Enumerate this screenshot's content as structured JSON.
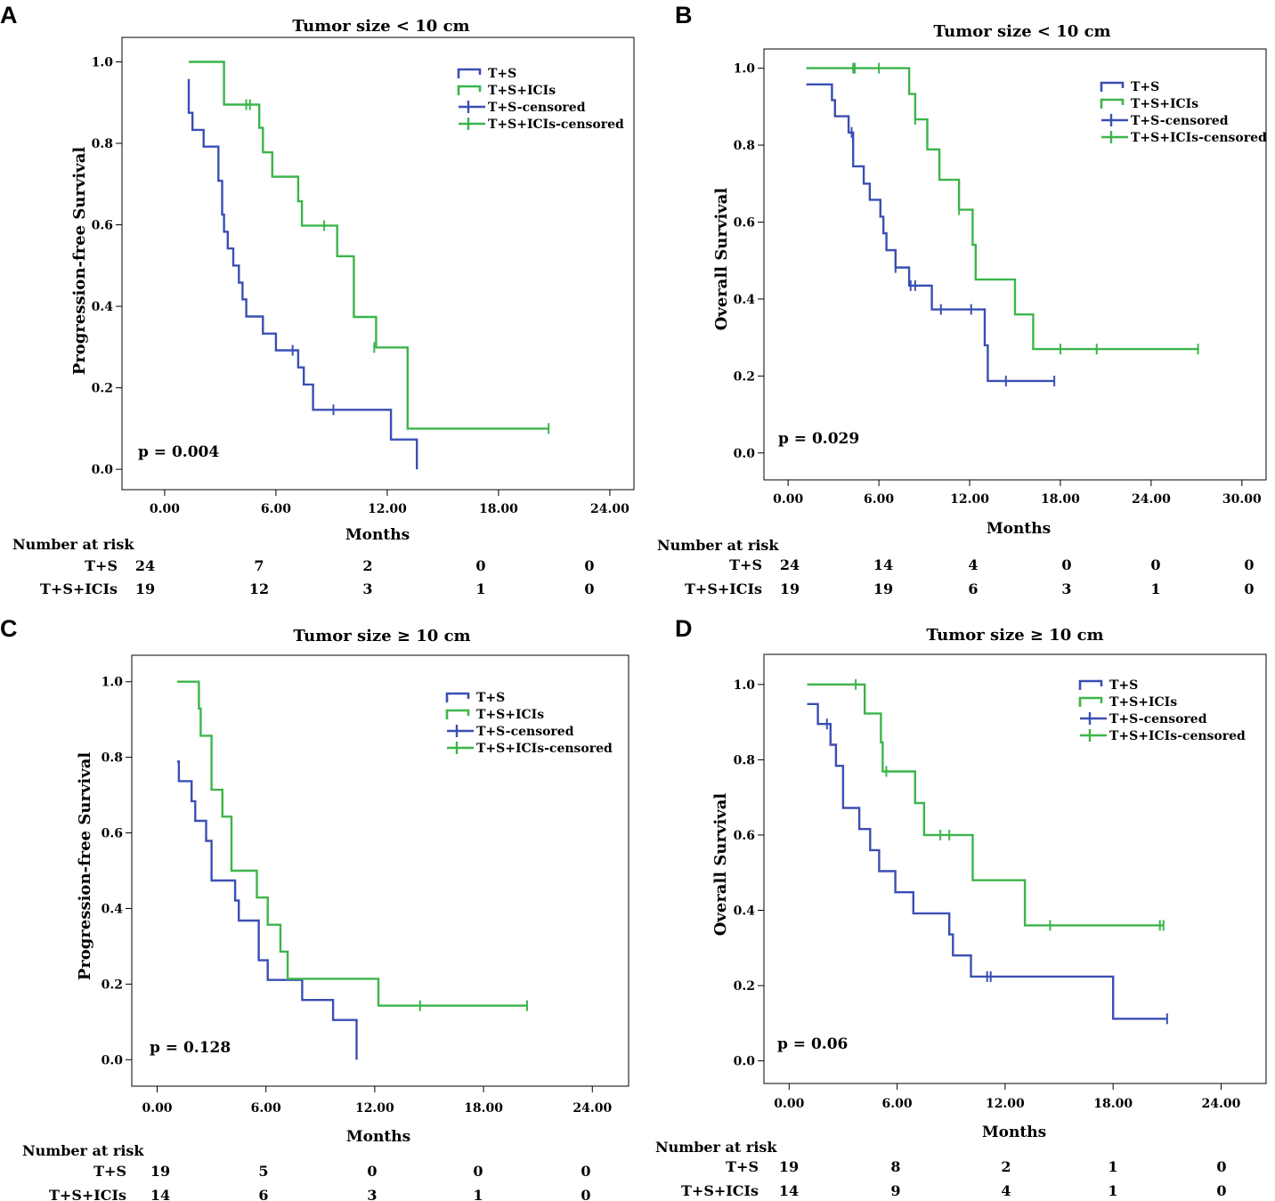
{
  "colors": {
    "ts": "#3a4fb4",
    "tsici": "#3cb54a",
    "axis": "#000000"
  },
  "chart_data": [
    {
      "type": "line",
      "panel_letter": "A",
      "title": "Tumor size < 10 cm",
      "ylabel": "Progression-free Survival",
      "xlabel": "Months",
      "xlim": [
        -2.3,
        25.3
      ],
      "ylim": [
        -0.05,
        1.06
      ],
      "xticks": [
        0,
        6,
        12,
        18,
        24
      ],
      "xtick_labels": [
        "0.00",
        "6.00",
        "12.00",
        "18.00",
        "24.00"
      ],
      "yticks": [
        0,
        0.2,
        0.4,
        0.6,
        0.8,
        1.0
      ],
      "ytick_labels": [
        "0.0",
        "0.2",
        "0.4",
        "0.6",
        "0.8",
        "1.0"
      ],
      "p_value": "p = 0.004",
      "legend": [
        "T+S",
        "T+S+ICIs",
        "T+S-censored",
        "T+S+ICIs-censored"
      ],
      "series": [
        {
          "name": "T+S",
          "color": "ts",
          "steps": [
            [
              1.3,
              0.958
            ],
            [
              1.3,
              0.875
            ],
            [
              1.5,
              0.833
            ],
            [
              2.1,
              0.792
            ],
            [
              2.9,
              0.708
            ],
            [
              3.1,
              0.625
            ],
            [
              3.2,
              0.583
            ],
            [
              3.4,
              0.542
            ],
            [
              3.7,
              0.5
            ],
            [
              4.0,
              0.458
            ],
            [
              4.2,
              0.417
            ],
            [
              4.4,
              0.375
            ],
            [
              5.3,
              0.333
            ],
            [
              6.0,
              0.292
            ],
            [
              7.2,
              0.25
            ],
            [
              7.5,
              0.208
            ],
            [
              8.0,
              0.146
            ],
            [
              12.2,
              0.073
            ],
            [
              13.6,
              0.0
            ]
          ],
          "start": 1.3,
          "start_y": 0.958,
          "censored": [
            [
              6.9,
              0.292
            ],
            [
              9.1,
              0.146
            ]
          ]
        },
        {
          "name": "T+S+ICIs",
          "color": "tsici",
          "steps": [
            [
              3.2,
              0.895
            ],
            [
              5.1,
              0.838
            ],
            [
              5.3,
              0.778
            ],
            [
              5.8,
              0.718
            ],
            [
              7.2,
              0.658
            ],
            [
              7.4,
              0.598
            ],
            [
              9.3,
              0.523
            ],
            [
              10.2,
              0.374
            ],
            [
              11.4,
              0.299
            ],
            [
              13.1,
              0.1
            ]
          ],
          "start": 1.3,
          "start_y": 1.0,
          "end": 20.7,
          "censored": [
            [
              4.4,
              0.895
            ],
            [
              4.6,
              0.895
            ],
            [
              8.6,
              0.598
            ],
            [
              11.3,
              0.299
            ],
            [
              20.7,
              0.1
            ]
          ]
        }
      ],
      "risk": {
        "heading": "Number at risk",
        "rows": [
          {
            "label": "T+S",
            "values": [
              "24",
              "7",
              "2",
              "0",
              "0"
            ]
          },
          {
            "label": "T+S+ICIs",
            "values": [
              "19",
              "12",
              "3",
              "1",
              "0"
            ]
          }
        ]
      }
    },
    {
      "type": "line",
      "panel_letter": "B",
      "title": "Tumor size < 10 cm",
      "ylabel": "Overall Survival",
      "xlabel": "Months",
      "xlim": [
        -1.6,
        31.6
      ],
      "ylim": [
        -0.07,
        1.05
      ],
      "xticks": [
        0,
        6,
        12,
        18,
        24,
        30
      ],
      "xtick_labels": [
        "0.00",
        "6.00",
        "12.00",
        "18.00",
        "24.00",
        "30.00"
      ],
      "yticks": [
        0,
        0.2,
        0.4,
        0.6,
        0.8,
        1.0
      ],
      "ytick_labels": [
        "0.0",
        "0.2",
        "0.4",
        "0.6",
        "0.8",
        "1.0"
      ],
      "p_value": "p = 0.029",
      "legend": [
        "T+S",
        "T+S+ICIs",
        "T+S-censored",
        "T+S+ICIs-censored"
      ],
      "series": [
        {
          "name": "T+S",
          "color": "ts",
          "steps": [
            [
              2.9,
              0.917
            ],
            [
              3.1,
              0.875
            ],
            [
              4.0,
              0.833
            ],
            [
              4.3,
              0.745
            ],
            [
              5.0,
              0.7
            ],
            [
              5.4,
              0.658
            ],
            [
              6.1,
              0.614
            ],
            [
              6.3,
              0.571
            ],
            [
              6.5,
              0.527
            ],
            [
              7.1,
              0.482
            ],
            [
              8.0,
              0.435
            ],
            [
              9.5,
              0.373
            ],
            [
              13.0,
              0.28
            ],
            [
              13.2,
              0.187
            ]
          ],
          "start": 1.2,
          "start_y": 0.958,
          "end": 17.6,
          "censored": [
            [
              4.2,
              0.833
            ],
            [
              7.1,
              0.482
            ],
            [
              8.1,
              0.435
            ],
            [
              8.4,
              0.435
            ],
            [
              10.1,
              0.373
            ],
            [
              12.1,
              0.373
            ],
            [
              14.4,
              0.187
            ],
            [
              17.6,
              0.187
            ]
          ]
        },
        {
          "name": "T+S+ICIs",
          "color": "tsici",
          "steps": [
            [
              8.0,
              0.933
            ],
            [
              8.4,
              0.867
            ],
            [
              9.2,
              0.789
            ],
            [
              10.0,
              0.71
            ],
            [
              11.3,
              0.632
            ],
            [
              12.2,
              0.541
            ],
            [
              12.4,
              0.451
            ],
            [
              15.0,
              0.36
            ],
            [
              16.2,
              0.27
            ]
          ],
          "start": 1.2,
          "start_y": 1.0,
          "end": 27.1,
          "censored": [
            [
              4.3,
              1.0
            ],
            [
              4.4,
              1.0
            ],
            [
              6.0,
              1.0
            ],
            [
              8.4,
              0.867
            ],
            [
              11.3,
              0.632
            ],
            [
              18.0,
              0.27
            ],
            [
              20.4,
              0.27
            ],
            [
              27.1,
              0.27
            ]
          ]
        }
      ],
      "risk": {
        "heading": "Number at risk",
        "rows": [
          {
            "label": "T+S",
            "values": [
              "24",
              "14",
              "4",
              "0",
              "0",
              "0"
            ]
          },
          {
            "label": "T+S+ICIs",
            "values": [
              "19",
              "19",
              "6",
              "3",
              "1",
              "0"
            ]
          }
        ]
      }
    },
    {
      "type": "line",
      "panel_letter": "C",
      "title": "Tumor size  ≥ 10 cm",
      "ylabel": "Progression-free Survival",
      "xlabel": "Months",
      "xlim": [
        -1.4,
        26.0
      ],
      "ylim": [
        -0.07,
        1.07
      ],
      "xticks": [
        0,
        6,
        12,
        18,
        24
      ],
      "xtick_labels": [
        "0.00",
        "6.00",
        "12.00",
        "18.00",
        "24.00"
      ],
      "yticks": [
        0,
        0.2,
        0.4,
        0.6,
        0.8,
        1.0
      ],
      "ytick_labels": [
        "0.0",
        "0.2",
        "0.4",
        "0.6",
        "0.8",
        "1.0"
      ],
      "p_value": "p = 0.128",
      "legend": [
        "T+S",
        "T+S+ICIs",
        "T+S-censored",
        "T+S+ICIs-censored"
      ],
      "series": [
        {
          "name": "T+S",
          "color": "ts",
          "steps": [
            [
              1.2,
              0.737
            ],
            [
              1.9,
              0.684
            ],
            [
              2.1,
              0.632
            ],
            [
              2.7,
              0.579
            ],
            [
              3.0,
              0.474
            ],
            [
              4.3,
              0.421
            ],
            [
              4.5,
              0.368
            ],
            [
              5.6,
              0.263
            ],
            [
              6.1,
              0.211
            ],
            [
              8.0,
              0.158
            ],
            [
              9.7,
              0.105
            ],
            [
              11.0,
              0.0
            ]
          ],
          "start": 1.1,
          "start_y": 0.789,
          "censored": []
        },
        {
          "name": "T+S+ICIs",
          "color": "tsici",
          "steps": [
            [
              2.3,
              0.929
            ],
            [
              2.4,
              0.857
            ],
            [
              3.0,
              0.714
            ],
            [
              3.6,
              0.643
            ],
            [
              4.1,
              0.5
            ],
            [
              5.5,
              0.429
            ],
            [
              6.1,
              0.357
            ],
            [
              6.8,
              0.286
            ],
            [
              7.2,
              0.214
            ],
            [
              12.2,
              0.143
            ]
          ],
          "start": 1.1,
          "start_y": 1.0,
          "end": 20.4,
          "censored": [
            [
              14.5,
              0.143
            ],
            [
              20.4,
              0.143
            ]
          ]
        }
      ],
      "risk": {
        "heading": "Number at risk",
        "rows": [
          {
            "label": "T+S",
            "values": [
              "19",
              "5",
              "0",
              "0",
              "0"
            ]
          },
          {
            "label": "T+S+ICIs",
            "values": [
              "14",
              "6",
              "3",
              "1",
              "0"
            ]
          }
        ]
      }
    },
    {
      "type": "line",
      "panel_letter": "D",
      "title": "Tumor size  ≥ 10 cm",
      "ylabel": "Overall Survival",
      "xlabel": "Months",
      "xlim": [
        -1.4,
        26.5
      ],
      "ylim": [
        -0.06,
        1.08
      ],
      "xticks": [
        0,
        6,
        12,
        18,
        24
      ],
      "xtick_labels": [
        "0.00",
        "6.00",
        "12.00",
        "18.00",
        "24.00"
      ],
      "yticks": [
        0,
        0.2,
        0.4,
        0.6,
        0.8,
        1.0
      ],
      "ytick_labels": [
        "0.0",
        "0.2",
        "0.4",
        "0.6",
        "0.8",
        "1.0"
      ],
      "p_value": "p = 0.06",
      "legend": [
        "T+S",
        "T+S+ICIs",
        "T+S-censored",
        "T+S+ICIs-censored"
      ],
      "series": [
        {
          "name": "T+S",
          "color": "ts",
          "steps": [
            [
              1.6,
              0.895
            ],
            [
              2.3,
              0.84
            ],
            [
              2.6,
              0.784
            ],
            [
              3.0,
              0.672
            ],
            [
              3.9,
              0.616
            ],
            [
              4.5,
              0.56
            ],
            [
              5.0,
              0.504
            ],
            [
              5.9,
              0.448
            ],
            [
              6.9,
              0.392
            ],
            [
              8.9,
              0.336
            ],
            [
              9.1,
              0.28
            ],
            [
              10.1,
              0.224
            ],
            [
              18.0,
              0.112
            ]
          ],
          "start": 1.0,
          "start_y": 0.948,
          "end": 21.0,
          "censored": [
            [
              2.1,
              0.895
            ],
            [
              11.0,
              0.224
            ],
            [
              11.2,
              0.224
            ],
            [
              21.0,
              0.112
            ]
          ]
        },
        {
          "name": "T+S+ICIs",
          "color": "tsici",
          "steps": [
            [
              4.2,
              0.923
            ],
            [
              5.1,
              0.846
            ],
            [
              5.2,
              0.769
            ],
            [
              7.0,
              0.685
            ],
            [
              7.5,
              0.6
            ],
            [
              10.2,
              0.48
            ],
            [
              13.1,
              0.36
            ]
          ],
          "start": 1.0,
          "start_y": 1.0,
          "end": 20.8,
          "censored": [
            [
              3.7,
              1.0
            ],
            [
              5.4,
              0.769
            ],
            [
              8.4,
              0.6
            ],
            [
              8.9,
              0.6
            ],
            [
              14.5,
              0.36
            ],
            [
              20.6,
              0.36
            ],
            [
              20.8,
              0.36
            ]
          ]
        }
      ],
      "risk": {
        "heading": "Number at risk",
        "rows": [
          {
            "label": "T+S",
            "values": [
              "19",
              "8",
              "2",
              "1",
              "0"
            ]
          },
          {
            "label": "T+S+ICIs",
            "values": [
              "14",
              "9",
              "4",
              "1",
              "0"
            ]
          }
        ]
      }
    }
  ]
}
